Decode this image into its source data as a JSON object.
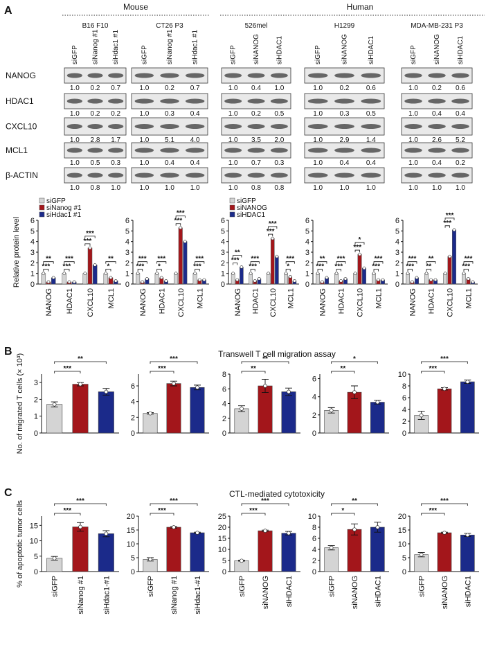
{
  "panel_labels": [
    "A",
    "B",
    "C"
  ],
  "section_titles": {
    "b": "Transwell T cell migration assay",
    "c": "CTL-mediated cytotoxicity"
  },
  "blots": {
    "groups": [
      "Mouse",
      "Human"
    ],
    "rows": [
      "NANOG",
      "HDAC1",
      "CXCL10",
      "MCL1",
      "β-ACTIN"
    ],
    "lines": [
      {
        "name": "B16 F10",
        "lanes": [
          "siGFP",
          "siNanog #1",
          "siHdac1 #1"
        ],
        "quant": [
          [
            "1.0",
            "0.2",
            "0.7"
          ],
          [
            "1.0",
            "0.2",
            "0.2"
          ],
          [
            "1.0",
            "2.8",
            "1.7"
          ],
          [
            "1.0",
            "0.5",
            "0.3"
          ],
          [
            "1.0",
            "0.8",
            "1.0"
          ]
        ]
      },
      {
        "name": "CT26 P3",
        "lanes": [
          "siGFP",
          "siNanog #1",
          "siHdac1 #1"
        ],
        "quant": [
          [
            "1.0",
            "0.2",
            "0.7"
          ],
          [
            "1.0",
            "0.3",
            "0.4"
          ],
          [
            "1.0",
            "5.1",
            "4.0"
          ],
          [
            "1.0",
            "0.4",
            "0.4"
          ],
          [
            "1.0",
            "1.0",
            "1.0"
          ]
        ]
      },
      {
        "name": "526mel",
        "lanes": [
          "siGFP",
          "siNANOG",
          "siHDAC1"
        ],
        "quant": [
          [
            "1.0",
            "0.4",
            "1.0"
          ],
          [
            "1.0",
            "0.2",
            "0.5"
          ],
          [
            "1.0",
            "3.5",
            "2.0"
          ],
          [
            "1.0",
            "0.7",
            "0.3"
          ],
          [
            "1.0",
            "0.8",
            "0.8"
          ]
        ]
      },
      {
        "name": "H1299",
        "lanes": [
          "siGFP",
          "siNANOG",
          "siHDAC1"
        ],
        "quant": [
          [
            "1.0",
            "0.2",
            "0.6"
          ],
          [
            "1.0",
            "0.3",
            "0.5"
          ],
          [
            "1.0",
            "2.9",
            "1.4"
          ],
          [
            "1.0",
            "0.4",
            "0.4"
          ],
          [
            "1.0",
            "1.0",
            "1.0"
          ]
        ]
      },
      {
        "name": "MDA-MB-231 P3",
        "lanes": [
          "siGFP",
          "siNANOG",
          "siHDAC1"
        ],
        "quant": [
          [
            "1.0",
            "0.2",
            "0.6"
          ],
          [
            "1.0",
            "0.4",
            "0.4"
          ],
          [
            "1.0",
            "2.6",
            "5.2"
          ],
          [
            "1.0",
            "0.4",
            "0.2"
          ],
          [
            "1.0",
            "1.0",
            "1.0"
          ]
        ]
      }
    ]
  },
  "chart_data": [
    {
      "type": "bar",
      "ylabel": "Relative protein level",
      "categories": [
        "NANOG",
        "HDAC1",
        "CXCL10",
        "MCL1"
      ],
      "ylim": [
        0,
        6
      ],
      "yticks": [
        0,
        1,
        2,
        3,
        4,
        5,
        6
      ],
      "series": [
        {
          "name": "siGFP",
          "color": "#d4d4d4",
          "values": [
            1,
            1,
            1,
            1
          ]
        },
        {
          "name": "siNanog #1",
          "color": "#a3161b",
          "values": [
            0.2,
            0.2,
            3.4,
            0.6
          ],
          "stars": [
            "***",
            "***",
            "***",
            "*"
          ]
        },
        {
          "name": "siHdac1 #1",
          "color": "#1b2a8a",
          "values": [
            0.6,
            0.2,
            1.8,
            0.3
          ],
          "stars": [
            "**",
            "***",
            "***",
            "**"
          ]
        }
      ]
    },
    {
      "type": "bar",
      "categories": [
        "NANOG",
        "HDAC1",
        "CXCL10",
        "MCL1"
      ],
      "ylim": [
        0,
        6
      ],
      "yticks": [
        0,
        1,
        2,
        3,
        4,
        5,
        6
      ],
      "series": [
        {
          "color": "#d4d4d4",
          "values": [
            1,
            1,
            1,
            1
          ]
        },
        {
          "color": "#a3161b",
          "values": [
            0.2,
            0.6,
            5.3,
            0.4
          ],
          "stars": [
            "***",
            "*",
            "***",
            "***"
          ]
        },
        {
          "color": "#1b2a8a",
          "values": [
            0.5,
            0.3,
            4.0,
            0.4
          ],
          "stars": [
            "***",
            "***",
            "***",
            "***"
          ]
        }
      ]
    },
    {
      "type": "bar",
      "categories": [
        "NANOG",
        "HDAC1",
        "CXCL10",
        "MCL1"
      ],
      "ylim": [
        0,
        6
      ],
      "yticks": [
        0,
        1,
        2,
        3,
        4,
        5,
        6
      ],
      "series": [
        {
          "name": "siGFP",
          "color": "#d4d4d4",
          "values": [
            1,
            1,
            1,
            1
          ]
        },
        {
          "name": "siNANOG",
          "color": "#a3161b",
          "values": [
            0.4,
            0.3,
            4.3,
            0.7
          ],
          "stars": [
            "***",
            "***",
            "***",
            "*"
          ]
        },
        {
          "name": "siHDAC1",
          "color": "#1b2a8a",
          "values": [
            1.6,
            0.5,
            2.6,
            0.3
          ],
          "stars": [
            "**",
            "***",
            "***",
            "***"
          ]
        }
      ]
    },
    {
      "type": "bar",
      "categories": [
        "NANOG",
        "HDAC1",
        "CXCL10",
        "MCL1"
      ],
      "ylim": [
        0,
        6
      ],
      "yticks": [
        0,
        1,
        2,
        3,
        4,
        5,
        6
      ],
      "series": [
        {
          "color": "#d4d4d4",
          "values": [
            1,
            1,
            1,
            1
          ]
        },
        {
          "color": "#a3161b",
          "values": [
            0.2,
            0.3,
            2.8,
            0.4
          ],
          "stars": [
            "***",
            "***",
            "***",
            "***"
          ]
        },
        {
          "color": "#1b2a8a",
          "values": [
            0.6,
            0.5,
            1.5,
            0.4
          ],
          "stars": [
            "**",
            "***",
            "*",
            "***"
          ]
        }
      ]
    },
    {
      "type": "bar",
      "categories": [
        "NANOG",
        "HDAC1",
        "CXCL10",
        "MCL1"
      ],
      "ylim": [
        0,
        6
      ],
      "yticks": [
        0,
        1,
        2,
        3,
        4,
        5,
        6
      ],
      "series": [
        {
          "color": "#d4d4d4",
          "values": [
            1,
            1,
            1,
            1
          ]
        },
        {
          "color": "#a3161b",
          "values": [
            0.2,
            0.4,
            2.6,
            0.5
          ],
          "stars": [
            "***",
            "**",
            "***",
            "***"
          ]
        },
        {
          "color": "#1b2a8a",
          "values": [
            0.6,
            0.4,
            5.1,
            0.2
          ],
          "stars": [
            "***",
            "**",
            "***",
            "***"
          ]
        }
      ]
    },
    {
      "type": "bar",
      "ylabel": "No. of migrated T cells (× 10³)",
      "ylim": [
        0,
        3.5
      ],
      "yticks": [
        0,
        1,
        2,
        3
      ],
      "values": [
        1.7,
        2.9,
        2.45
      ],
      "errors": [
        0.15,
        0.1,
        0.2
      ],
      "colors": [
        "#d4d4d4",
        "#a3161b",
        "#1b2a8a"
      ],
      "stars": [
        null,
        "***",
        "**"
      ]
    },
    {
      "type": "bar",
      "ylim": [
        0,
        7.5
      ],
      "yticks": [
        0,
        2,
        4,
        6
      ],
      "values": [
        2.5,
        6.3,
        5.8
      ],
      "errors": [
        0.1,
        0.3,
        0.3
      ],
      "colors": [
        "#d4d4d4",
        "#a3161b",
        "#1b2a8a"
      ],
      "stars": [
        null,
        "***",
        "***"
      ]
    },
    {
      "type": "bar",
      "ylim": [
        0,
        8
      ],
      "yticks": [
        0,
        2,
        4,
        6,
        8
      ],
      "values": [
        3.3,
        6.4,
        5.6
      ],
      "errors": [
        0.4,
        0.9,
        0.5
      ],
      "colors": [
        "#d4d4d4",
        "#a3161b",
        "#1b2a8a"
      ],
      "stars": [
        null,
        "**",
        "**"
      ]
    },
    {
      "type": "bar",
      "ylim": [
        0,
        6.5
      ],
      "yticks": [
        0,
        2,
        4,
        6
      ],
      "values": [
        2.5,
        4.5,
        3.4
      ],
      "errors": [
        0.3,
        0.7,
        0.2
      ],
      "colors": [
        "#d4d4d4",
        "#a3161b",
        "#1b2a8a"
      ],
      "stars": [
        null,
        "**",
        "*"
      ]
    },
    {
      "type": "bar",
      "ylim": [
        0,
        10
      ],
      "yticks": [
        0,
        2,
        4,
        6,
        8,
        10
      ],
      "values": [
        3.0,
        7.5,
        8.7
      ],
      "errors": [
        0.7,
        0.2,
        0.3
      ],
      "colors": [
        "#d4d4d4",
        "#a3161b",
        "#1b2a8a"
      ],
      "stars": [
        null,
        "***",
        "***"
      ]
    },
    {
      "type": "bar",
      "ylabel": "% of apoptotic tumor cells",
      "categories": [
        "siGFP",
        "siNanog #1",
        "siHdac1-#1"
      ],
      "ylim": [
        0,
        18
      ],
      "yticks": [
        0,
        5,
        10,
        15
      ],
      "values": [
        4.3,
        14.5,
        12.3
      ],
      "errors": [
        0.6,
        1.4,
        1.0
      ],
      "colors": [
        "#d4d4d4",
        "#a3161b",
        "#1b2a8a"
      ],
      "stars": [
        null,
        "***",
        "***"
      ]
    },
    {
      "type": "bar",
      "categories": [
        "siGFP",
        "siNanog #1",
        "siHdac1-#1"
      ],
      "ylim": [
        0,
        20
      ],
      "yticks": [
        0,
        5,
        10,
        15,
        20
      ],
      "values": [
        4.4,
        16.0,
        14.0
      ],
      "errors": [
        0.6,
        0.3,
        0.2
      ],
      "colors": [
        "#d4d4d4",
        "#a3161b",
        "#1b2a8a"
      ],
      "stars": [
        null,
        "***",
        "***"
      ]
    },
    {
      "type": "bar",
      "categories": [
        "siGFP",
        "siNANOG",
        "siHDAC1"
      ],
      "ylim": [
        0,
        25
      ],
      "yticks": [
        0,
        5,
        10,
        15,
        20,
        25
      ],
      "values": [
        4.9,
        18.4,
        17.3
      ],
      "errors": [
        0.2,
        0.3,
        0.8
      ],
      "colors": [
        "#d4d4d4",
        "#a3161b",
        "#1b2a8a"
      ],
      "stars": [
        null,
        "***",
        "***"
      ]
    },
    {
      "type": "bar",
      "categories": [
        "siGFP",
        "siNANOG",
        "siHDAC1"
      ],
      "ylim": [
        0,
        10
      ],
      "yticks": [
        0,
        2,
        4,
        6,
        8,
        10
      ],
      "values": [
        4.3,
        7.6,
        8.0
      ],
      "errors": [
        0.4,
        1.0,
        0.9
      ],
      "colors": [
        "#d4d4d4",
        "#a3161b",
        "#1b2a8a"
      ],
      "stars": [
        null,
        "*",
        "**"
      ]
    },
    {
      "type": "bar",
      "categories": [
        "siGFP",
        "siNANOG",
        "siHDAC1"
      ],
      "ylim": [
        0,
        20
      ],
      "yticks": [
        0,
        5,
        10,
        15,
        20
      ],
      "values": [
        6.1,
        14.0,
        13.2
      ],
      "errors": [
        0.8,
        0.2,
        0.6
      ],
      "colors": [
        "#d4d4d4",
        "#a3161b",
        "#1b2a8a"
      ],
      "stars": [
        null,
        "***",
        "***"
      ]
    }
  ]
}
